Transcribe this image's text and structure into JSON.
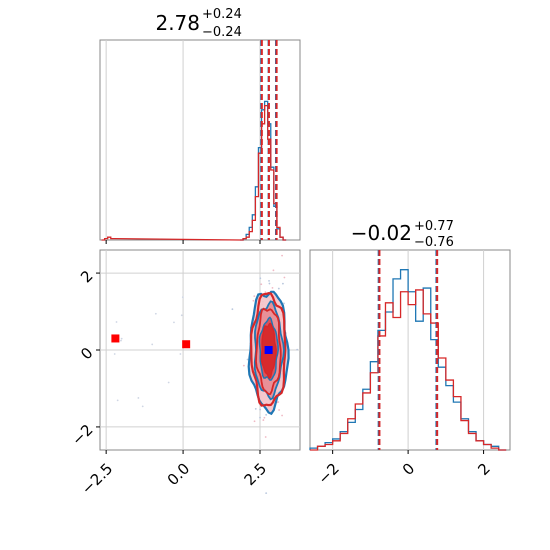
{
  "chart_data": [
    {
      "type": "histogram",
      "panel": "marginal-param-1",
      "title": {
        "value": "2.78",
        "upper": "+0.24",
        "lower": "−0.24"
      },
      "xlim": [
        -2.7,
        3.8
      ],
      "grid": true,
      "series": [
        {
          "name": "",
          "color": "#1f77b4",
          "bins_x": [
            1.9,
            2.0,
            2.1,
            2.2,
            2.3,
            2.4,
            2.5,
            2.6,
            2.7,
            2.8,
            2.9,
            3.0,
            3.1,
            3.2,
            3.3
          ],
          "heights": [
            0.0,
            0.01,
            0.04,
            0.09,
            0.18,
            0.38,
            0.66,
            0.93,
            0.99,
            0.83,
            0.52,
            0.24,
            0.08,
            0.02,
            0.0
          ],
          "quantiles": [
            2.54,
            2.78,
            3.02
          ]
        },
        {
          "name": "",
          "color": "#d62728",
          "bins_x": [
            -2.6,
            -2.5,
            -2.4,
            -2.3,
            1.9,
            2.0,
            2.1,
            2.2,
            2.3,
            2.4,
            2.5,
            2.6,
            2.7,
            2.8,
            2.9,
            3.0,
            3.1,
            3.2,
            3.3
          ],
          "heights": [
            0.0,
            0.01,
            0.02,
            0.01,
            0.0,
            0.01,
            0.02,
            0.06,
            0.14,
            0.31,
            0.62,
            0.83,
            0.96,
            0.72,
            0.5,
            0.26,
            0.09,
            0.02,
            0.0
          ],
          "quantiles": [
            2.56,
            2.79,
            3.04
          ]
        }
      ]
    },
    {
      "type": "contour-2d",
      "panel": "joint",
      "xlim": [
        -2.7,
        3.8
      ],
      "ylim": [
        -2.6,
        2.6
      ],
      "x_ticks": [
        "−2.5",
        "0.0",
        "2.5"
      ],
      "y_ticks": [
        "2",
        "0",
        "−2"
      ],
      "grid": true,
      "outlier_points": [
        {
          "x": -2.2,
          "y": 0.3,
          "color": "#ff0000"
        },
        {
          "x": 0.1,
          "y": 0.15,
          "color": "#ff0000"
        }
      ],
      "truth_marker": {
        "x": 2.78,
        "y": 0.0,
        "color": "#0000ff"
      },
      "contour_center": {
        "x": 2.78,
        "y": 0.0
      }
    },
    {
      "type": "histogram",
      "panel": "marginal-param-2",
      "title": {
        "value": "−0.02",
        "upper": "+0.77",
        "lower": "−0.76"
      },
      "xlim": [
        -2.6,
        2.7
      ],
      "x_ticks": [
        "−2",
        "0",
        "2"
      ],
      "grid": true,
      "series": [
        {
          "name": "",
          "color": "#1f77b4",
          "bins_x": [
            -2.5,
            -2.3,
            -2.1,
            -1.9,
            -1.7,
            -1.5,
            -1.3,
            -1.1,
            -0.9,
            -0.7,
            -0.5,
            -0.3,
            -0.1,
            0.1,
            0.3,
            0.5,
            0.7,
            0.9,
            1.1,
            1.3,
            1.5,
            1.7,
            1.9,
            2.1,
            2.3,
            2.5
          ],
          "heights": [
            0.01,
            0.02,
            0.04,
            0.06,
            0.1,
            0.15,
            0.22,
            0.33,
            0.48,
            0.65,
            0.75,
            0.93,
            0.98,
            0.86,
            0.7,
            0.88,
            0.6,
            0.45,
            0.35,
            0.26,
            0.17,
            0.1,
            0.05,
            0.03,
            0.02,
            0.0
          ],
          "quantiles": [
            -0.78,
            -0.02,
            0.75
          ]
        },
        {
          "name": "",
          "color": "#d62728",
          "bins_x": [
            -2.5,
            -2.3,
            -2.1,
            -1.9,
            -1.7,
            -1.5,
            -1.3,
            -1.1,
            -0.9,
            -0.7,
            -0.5,
            -0.3,
            -0.1,
            0.1,
            0.3,
            0.5,
            0.7,
            0.9,
            1.1,
            1.3,
            1.5,
            1.7,
            1.9,
            2.1,
            2.3,
            2.5
          ],
          "heights": [
            0.0,
            0.02,
            0.03,
            0.05,
            0.09,
            0.17,
            0.25,
            0.31,
            0.42,
            0.62,
            0.8,
            0.72,
            0.86,
            0.79,
            0.87,
            0.74,
            0.69,
            0.5,
            0.38,
            0.29,
            0.16,
            0.09,
            0.05,
            0.03,
            0.01,
            0.0
          ],
          "quantiles": [
            -0.76,
            -0.02,
            0.77
          ]
        }
      ]
    }
  ]
}
